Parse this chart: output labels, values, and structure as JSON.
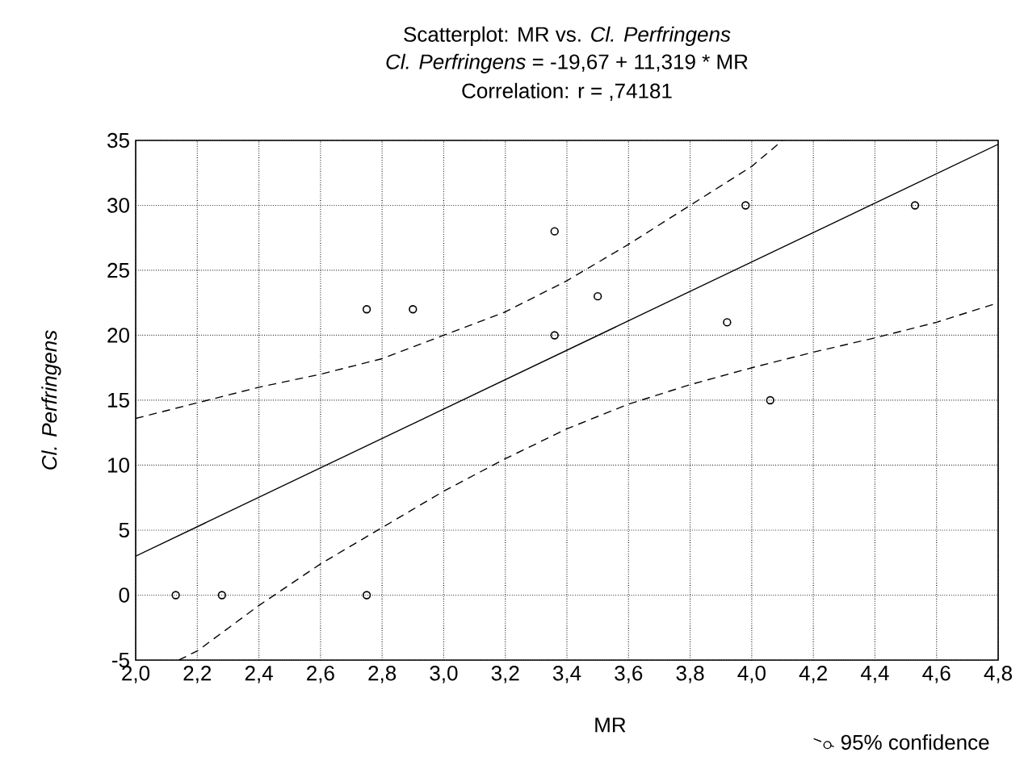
{
  "chart_data": {
    "type": "scatter",
    "title": "Scatterplot: MR  vs. *Cl. Perfringens*",
    "subtitle": "*Cl. Perfringens*  = -19,67 + 11,319 * MR",
    "annotations": [
      "Correlation: r = ,74181"
    ],
    "xlabel": "MR",
    "ylabel": "Cl. Perfringens",
    "xlim": [
      2.0,
      4.8
    ],
    "ylim": [
      -5,
      35
    ],
    "xticks": [
      {
        "value": 2.0,
        "label": "2,0"
      },
      {
        "value": 2.2,
        "label": "2,2"
      },
      {
        "value": 2.4,
        "label": "2,4"
      },
      {
        "value": 2.6,
        "label": "2,6"
      },
      {
        "value": 2.8,
        "label": "2,8"
      },
      {
        "value": 3.0,
        "label": "3,0"
      },
      {
        "value": 3.2,
        "label": "3,2"
      },
      {
        "value": 3.4,
        "label": "3,4"
      },
      {
        "value": 3.6,
        "label": "3,6"
      },
      {
        "value": 3.8,
        "label": "3,8"
      },
      {
        "value": 4.0,
        "label": "4,0"
      },
      {
        "value": 4.2,
        "label": "4,2"
      },
      {
        "value": 4.4,
        "label": "4,4"
      },
      {
        "value": 4.6,
        "label": "4,6"
      },
      {
        "value": 4.8,
        "label": "4,8"
      }
    ],
    "yticks": [
      -5,
      0,
      5,
      10,
      15,
      20,
      25,
      30,
      35
    ],
    "grid": true,
    "legend": "bottom right",
    "marker": "circle",
    "series": [
      {
        "color": "#000000",
        "x": [
          2.13,
          2.28,
          2.75,
          2.75,
          2.9,
          3.36,
          3.36,
          3.5,
          3.92,
          3.98,
          4.06,
          4.53
        ],
        "values": [
          0,
          0,
          0,
          22,
          22,
          28,
          20,
          23,
          21,
          30,
          15,
          30
        ]
      },
      {
        "type": "line",
        "color": "#000000",
        "line_style": "solid",
        "marker": "none",
        "x": [
          2.0,
          4.8
        ],
        "values": [
          3.0,
          34.7
        ]
      },
      {
        "type": "line",
        "name": "95% confidence",
        "color": "#000000",
        "line_style": "dashed",
        "marker": "none",
        "x": [
          2.0,
          2.2,
          2.4,
          2.6,
          2.8,
          3.0,
          3.2,
          3.4,
          3.6,
          3.8,
          4.0,
          4.1
        ],
        "values": [
          13.6,
          14.8,
          16,
          17,
          18.2,
          20,
          21.8,
          24.2,
          27,
          30,
          33,
          35
        ]
      },
      {
        "type": "line",
        "color": "#000000",
        "line_style": "dashed",
        "marker": "none",
        "x": [
          2.14,
          2.2,
          2.4,
          2.6,
          2.8,
          3.0,
          3.2,
          3.4,
          3.6,
          3.8,
          4.0,
          4.2,
          4.4,
          4.6,
          4.8
        ],
        "values": [
          -5,
          -4.3,
          -0.8,
          2.4,
          5.2,
          8,
          10.5,
          12.8,
          14.7,
          16.2,
          17.5,
          18.7,
          19.8,
          21,
          22.5
        ]
      }
    ]
  }
}
